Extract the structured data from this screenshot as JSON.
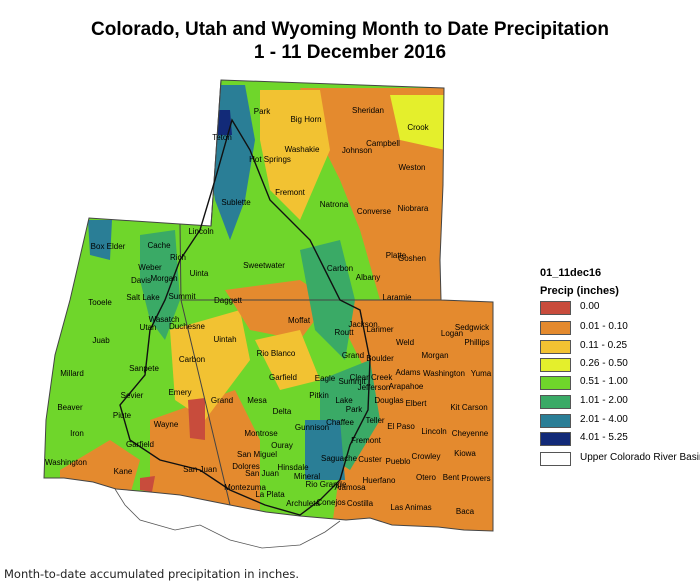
{
  "title_line1": "Colorado, Utah and Wyoming Month to Date Precipitation",
  "title_line2": "1 - 11 December 2016",
  "legend": {
    "layer": "01_11dec16",
    "field": "Precip (inches)",
    "classes": [
      {
        "label": "0.00",
        "color": "#c84c3c"
      },
      {
        "label": "0.01 - 0.10",
        "color": "#e48a2e"
      },
      {
        "label": "0.11 - 0.25",
        "color": "#f2c232"
      },
      {
        "label": "0.26 - 0.50",
        "color": "#e4ef2c"
      },
      {
        "label": "0.51 - 1.00",
        "color": "#6fd62b"
      },
      {
        "label": "1.01 - 2.00",
        "color": "#3aaa66"
      },
      {
        "label": "2.01 - 4.00",
        "color": "#2a7e96"
      },
      {
        "label": "4.01 - 5.25",
        "color": "#122a78"
      }
    ],
    "basin_label": "Upper Colorado River Basin"
  },
  "counties": {
    "teton": "Teton",
    "park": "Park",
    "big_horn": "Big Horn",
    "sheridan": "Sheridan",
    "crook": "Crook",
    "washakie": "Washakie",
    "johnson": "Johnson",
    "campbell": "Campbell",
    "hot_springs": "Hot Springs",
    "weston": "Weston",
    "fremont_wy": "Fremont",
    "natrona": "Natrona",
    "converse": "Converse",
    "niobrara": "Niobrara",
    "sublette": "Sublette",
    "lincoln": "Lincoln",
    "platte": "Platte",
    "goshen": "Goshen",
    "sweetwater": "Sweetwater",
    "carbon_wy": "Carbon",
    "albany": "Albany",
    "laramie": "Laramie",
    "box_elder": "Box Elder",
    "cache": "Cache",
    "rich": "Rich",
    "weber": "Weber",
    "morgan": "Morgan",
    "davis": "Davis",
    "uinta": "Uinta",
    "salt_lake": "Salt Lake",
    "summit": "Summit",
    "daggett": "Daggett",
    "tooele": "Tooele",
    "utah": "Utah",
    "wasatch": "Wasatch",
    "duchesne": "Duchesne",
    "uintah": "Uintah",
    "moffat": "Moffat",
    "routt": "Routt",
    "jackson": "Jackson",
    "larimer": "Larimer",
    "logan": "Logan",
    "sedgwick": "Sedgwick",
    "phillips": "Phillips",
    "juab": "Juab",
    "carbon_ut": "Carbon",
    "rio_blanco": "Rio Blanco",
    "grand_co": "Grand",
    "weld": "Weld",
    "boulder": "Boulder",
    "morgan_co": "Morgan",
    "millard": "Millard",
    "sanpete": "Sanpete",
    "garfield_co": "Garfield",
    "eagle": "Eagle",
    "summit_co": "Summit",
    "clear_creek": "Clear Creek",
    "adams": "Adams",
    "washington_co": "Washington",
    "yuma": "Yuma",
    "jefferson": "Jefferson",
    "arapahoe": "Arapahoe",
    "sevier": "Sevier",
    "emery": "Emery",
    "grand_ut": "Grand",
    "mesa": "Mesa",
    "pitkin": "Pitkin",
    "lake": "Lake",
    "douglas": "Douglas",
    "elbert": "Elbert",
    "kit_carson": "Kit Carson",
    "beaver": "Beaver",
    "piute": "Piute",
    "wayne": "Wayne",
    "delta": "Delta",
    "park_co": "Park",
    "teller": "Teller",
    "el_paso": "El Paso",
    "lincoln_co": "Lincoln",
    "cheyenne": "Cheyenne",
    "iron": "Iron",
    "garfield_ut": "Garfield",
    "montrose": "Montrose",
    "gunnison": "Gunnison",
    "chaffee": "Chaffee",
    "fremont_co": "Fremont",
    "kiowa": "Kiowa",
    "ouray": "Ouray",
    "san_miguel": "San Miguel",
    "custer": "Custer",
    "pueblo": "Pueblo",
    "crowley": "Crowley",
    "washington_ut": "Washington",
    "kane": "Kane",
    "san_juan_ut": "San Juan",
    "dolores": "Dolores",
    "san_juan_co": "San Juan",
    "hinsdale": "Hinsdale",
    "saguache": "Saguache",
    "mineral": "Mineral",
    "rio_grande": "Rio Grande",
    "alamosa": "Alamosa",
    "huerfano": "Huerfano",
    "otero": "Otero",
    "bent": "Bent",
    "prowers": "Prowers",
    "montezuma": "Montezuma",
    "la_plata": "La Plata",
    "archuleta": "Archuleta",
    "conejos": "Conejos",
    "costilla": "Costilla",
    "las_animas": "Las Animas",
    "baca": "Baca"
  },
  "caption": "Month-to-date accumulated precipitation in inches."
}
